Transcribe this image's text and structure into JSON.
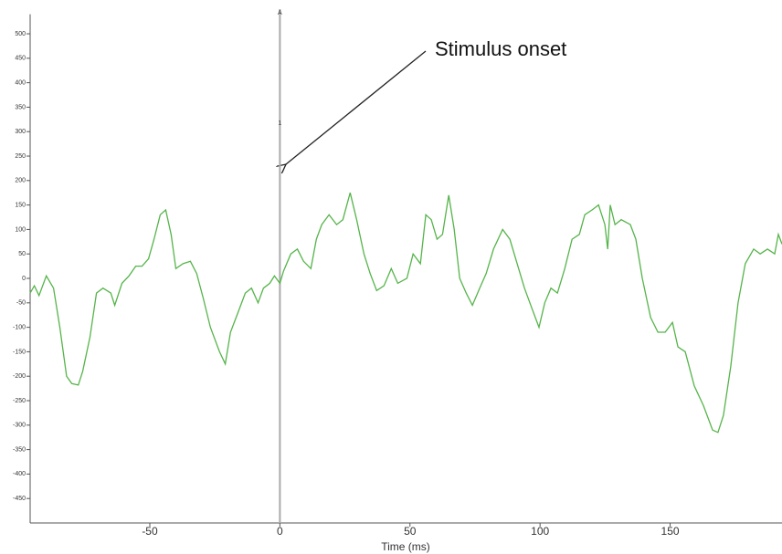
{
  "chart_data": {
    "type": "line",
    "x_label": "Time (ms)",
    "annotation": "Stimulus onset",
    "marker_labels": [
      "A",
      "1"
    ],
    "onset_x": 0,
    "color": "#55b44a",
    "xlim": [
      -96,
      193
    ],
    "ylim": [
      -500,
      540
    ],
    "xticks": [
      -50,
      0,
      50,
      100,
      150
    ],
    "yticks": [
      -450,
      -400,
      -350,
      -300,
      -250,
      -200,
      -150,
      -100,
      -50,
      0,
      50,
      100,
      150,
      200,
      250,
      300,
      350,
      400,
      450,
      500
    ],
    "x": [
      -96,
      -94.4,
      -92.6,
      -89.8,
      -87,
      -84.6,
      -82,
      -80,
      -77.5,
      -75.8,
      -73,
      -70.5,
      -68,
      -65,
      -63.5,
      -60.7,
      -58,
      -55.4,
      -53,
      -50.5,
      -48.4,
      -46,
      -43.9,
      -41.8,
      -40,
      -37.2,
      -34.4,
      -32,
      -29.5,
      -26.7,
      -23.2,
      -21,
      -19,
      -16.1,
      -13.3,
      -10.9,
      -8.4,
      -6.3,
      -3.9,
      -2.1,
      0,
      1.4,
      4.2,
      6.7,
      9.1,
      11.9,
      14,
      16.1,
      18.9,
      21.8,
      24.2,
      27,
      29.5,
      32.3,
      34.7,
      37.2,
      40,
      42.8,
      45.3,
      48.8,
      51.2,
      54,
      56.1,
      58.2,
      60.4,
      62.5,
      64.9,
      67,
      69.1,
      71.6,
      74,
      76.8,
      79.3,
      82.1,
      85.6,
      88.4,
      91.2,
      94,
      96.8,
      99.6,
      101.8,
      104.2,
      106.7,
      109.5,
      112.3,
      115.1,
      117.2,
      120,
      122.5,
      124.9,
      126,
      127,
      128.8,
      131.2,
      134.7,
      136.8,
      139.3,
      142.5,
      145.3,
      148.1,
      150.9,
      153,
      155.8,
      159.3,
      162.8,
      166.3,
      168.4,
      170.5,
      173.3,
      176.1,
      178.9,
      182.1,
      184.6,
      187.4,
      190.2,
      191.6,
      193
    ],
    "values": [
      -30,
      -15,
      -35,
      5,
      -20,
      -100,
      -200,
      -215,
      -218,
      -190,
      -120,
      -30,
      -20,
      -30,
      -55,
      -10,
      5,
      25,
      25,
      40,
      80,
      130,
      140,
      90,
      20,
      30,
      35,
      10,
      -40,
      -100,
      -150,
      -175,
      -110,
      -70,
      -30,
      -20,
      -50,
      -20,
      -10,
      5,
      -10,
      15,
      50,
      60,
      35,
      20,
      80,
      110,
      130,
      110,
      120,
      175,
      120,
      50,
      10,
      -25,
      -15,
      20,
      -10,
      0,
      50,
      30,
      130,
      120,
      80,
      90,
      170,
      100,
      0,
      -30,
      -55,
      -20,
      10,
      60,
      100,
      80,
      30,
      -20,
      -60,
      -100,
      -50,
      -20,
      -30,
      20,
      80,
      90,
      130,
      140,
      150,
      110,
      60,
      150,
      110,
      120,
      110,
      80,
      0,
      -80,
      -110,
      -110,
      -90,
      -140,
      -150,
      -220,
      -260,
      -310,
      -315,
      -280,
      -180,
      -50,
      30,
      60,
      50,
      60,
      50,
      90,
      70
    ]
  }
}
